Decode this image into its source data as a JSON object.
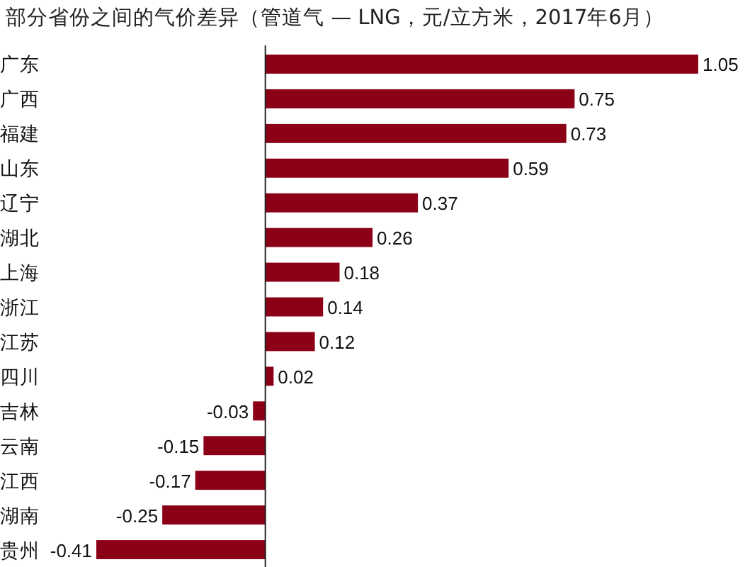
{
  "chart_data": {
    "type": "bar",
    "orientation": "horizontal",
    "title": "部分省份之间的气价差异（管道气 — LNG，元/立方米，2017年6月）",
    "categories": [
      "广东",
      "广西",
      "福建",
      "山东",
      "辽宁",
      "湖北",
      "上海",
      "浙江",
      "江苏",
      "四川",
      "吉林",
      "云南",
      "江西",
      "湖南",
      "贵州"
    ],
    "values": [
      1.05,
      0.75,
      0.73,
      0.59,
      0.37,
      0.26,
      0.18,
      0.14,
      0.12,
      0.02,
      -0.03,
      -0.15,
      -0.17,
      -0.25,
      -0.41
    ],
    "color": "#8b0016",
    "data_labels": true
  }
}
